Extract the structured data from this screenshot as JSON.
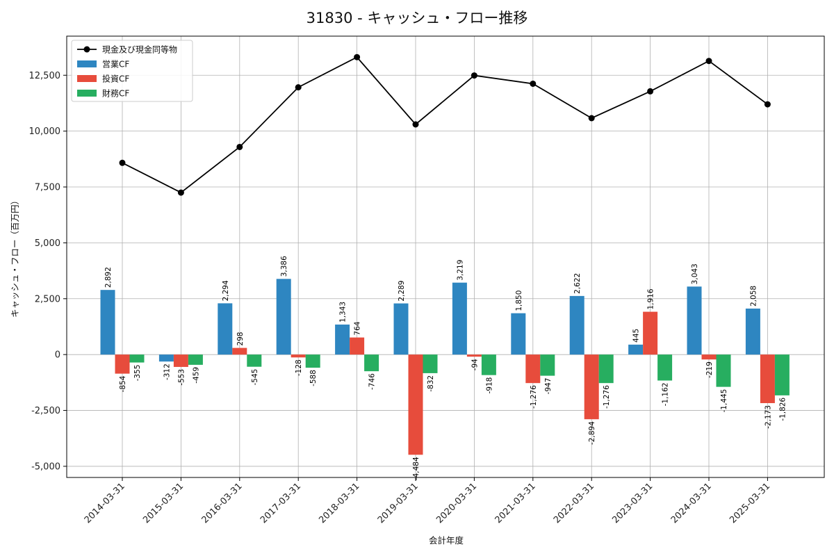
{
  "chart_data": {
    "type": "bar",
    "title": "31830 - キャッシュ・フロー推移",
    "xlabel": "会計年度",
    "ylabel": "キャッシュ・フロー（百万円）",
    "categories": [
      "2014-03-31",
      "2015-03-31",
      "2016-03-31",
      "2017-03-31",
      "2018-03-31",
      "2019-03-31",
      "2020-03-31",
      "2021-03-31",
      "2022-03-31",
      "2023-03-31",
      "2024-03-31",
      "2025-03-31"
    ],
    "series": [
      {
        "name": "営業CF",
        "type": "bar",
        "color": "#2e86c1",
        "values": [
          2892,
          -312,
          2294,
          3386,
          1343,
          2289,
          3219,
          1850,
          2622,
          445,
          3043,
          2058
        ],
        "labels": [
          "2,892",
          "-312",
          "2,294",
          "3,386",
          "1,343",
          "2,289",
          "3,219",
          "1,850",
          "2,622",
          "445",
          "3,043",
          "2,058"
        ]
      },
      {
        "name": "投資CF",
        "type": "bar",
        "color": "#e74c3c",
        "values": [
          -854,
          -553,
          298,
          -128,
          764,
          -4484,
          -94,
          -1276,
          -2894,
          1916,
          -219,
          -2173
        ],
        "labels": [
          "-854",
          "-553",
          "298",
          "-128",
          "764",
          "-4,484",
          "-94",
          "-1,276",
          "-2,894",
          "1,916",
          "-219",
          "-2,173"
        ]
      },
      {
        "name": "財務CF",
        "type": "bar",
        "color": "#27ae60",
        "values": [
          -355,
          -459,
          -545,
          -588,
          -746,
          -832,
          -918,
          -947,
          -1276,
          -1162,
          -1445,
          -1826
        ],
        "labels": [
          "-355",
          "-459",
          "-545",
          "-588",
          "-746",
          "-832",
          "-918",
          "-947",
          "-1,276",
          "-1,162",
          "-1,445",
          "-1,826"
        ]
      },
      {
        "name": "現金及び現金同等物",
        "type": "line",
        "color": "#000000",
        "values": [
          8580,
          7250,
          9290,
          11960,
          13310,
          10300,
          12490,
          12120,
          10580,
          11780,
          13140,
          11200
        ]
      }
    ],
    "ylim": [
      -5500,
      14250
    ],
    "yticks": [
      -5000,
      -2500,
      0,
      2500,
      5000,
      7500,
      10000,
      12500
    ],
    "ytick_labels": [
      "-5,000",
      "-2,500",
      "0",
      "2,500",
      "5,000",
      "7,500",
      "10,000",
      "12,500"
    ],
    "grid": true,
    "legend_position": "top-left"
  }
}
